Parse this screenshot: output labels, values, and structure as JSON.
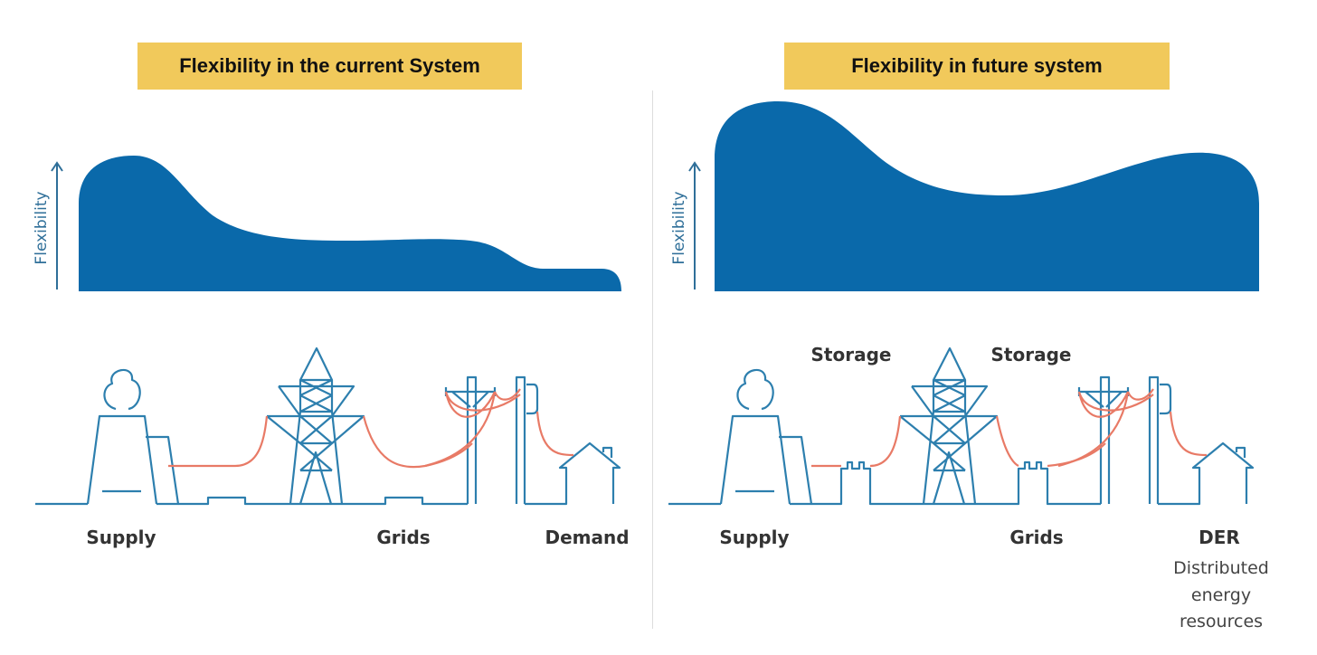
{
  "left_panel": {
    "title": "Flexibility in the current System",
    "axis_label": "Flexibility",
    "labels": {
      "supply": "Supply",
      "grids": "Grids",
      "demand": "Demand"
    }
  },
  "right_panel": {
    "title": "Flexibility in future system",
    "axis_label": "Flexibility",
    "labels": {
      "supply": "Supply",
      "grids": "Grids",
      "demand": "DER",
      "storage_1": "Storage",
      "storage_2": "Storage"
    },
    "der_description": [
      "Distributed",
      "energy",
      "resources"
    ]
  },
  "colors": {
    "title_bg": "#f1c95b",
    "flexibility_fill": "#0a69aa",
    "infrastructure_line": "#2d7fae",
    "power_line": "#e87a66"
  }
}
